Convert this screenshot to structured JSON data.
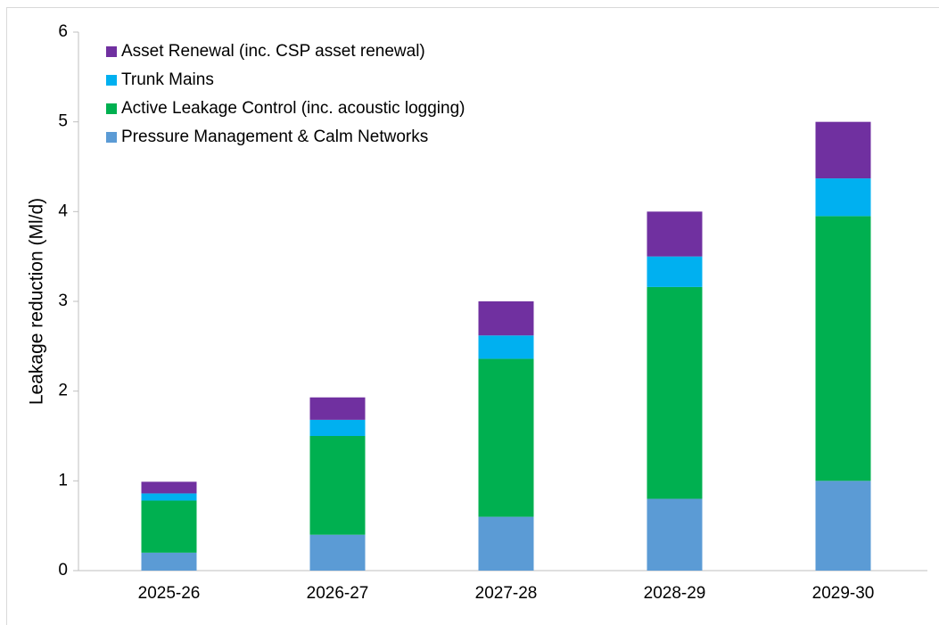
{
  "chart_data": {
    "type": "stacked_bar",
    "ylabel": "Leakage reduction (Ml/d)",
    "categories": [
      "2025-26",
      "2026-27",
      "2027-28",
      "2028-29",
      "2029-30"
    ],
    "series": [
      {
        "name": "Pressure Management & Calm Networks",
        "color": "#5b9bd5",
        "values": [
          0.2,
          0.4,
          0.6,
          0.8,
          1.0
        ]
      },
      {
        "name": "Active Leakage Control (inc. acoustic logging)",
        "color": "#00b050",
        "values": [
          0.58,
          1.1,
          1.76,
          2.36,
          2.95
        ]
      },
      {
        "name": "Trunk Mains",
        "color": "#00b0f0",
        "values": [
          0.08,
          0.18,
          0.26,
          0.34,
          0.42
        ]
      },
      {
        "name": "Asset Renewal (inc. CSP asset renewal)",
        "color": "#7030a0",
        "values": [
          0.13,
          0.25,
          0.38,
          0.5,
          0.63
        ]
      }
    ],
    "ylim": [
      0,
      6
    ],
    "yticks": [
      0,
      1,
      2,
      3,
      4,
      5,
      6
    ],
    "grid": false,
    "legend": "top-left"
  }
}
